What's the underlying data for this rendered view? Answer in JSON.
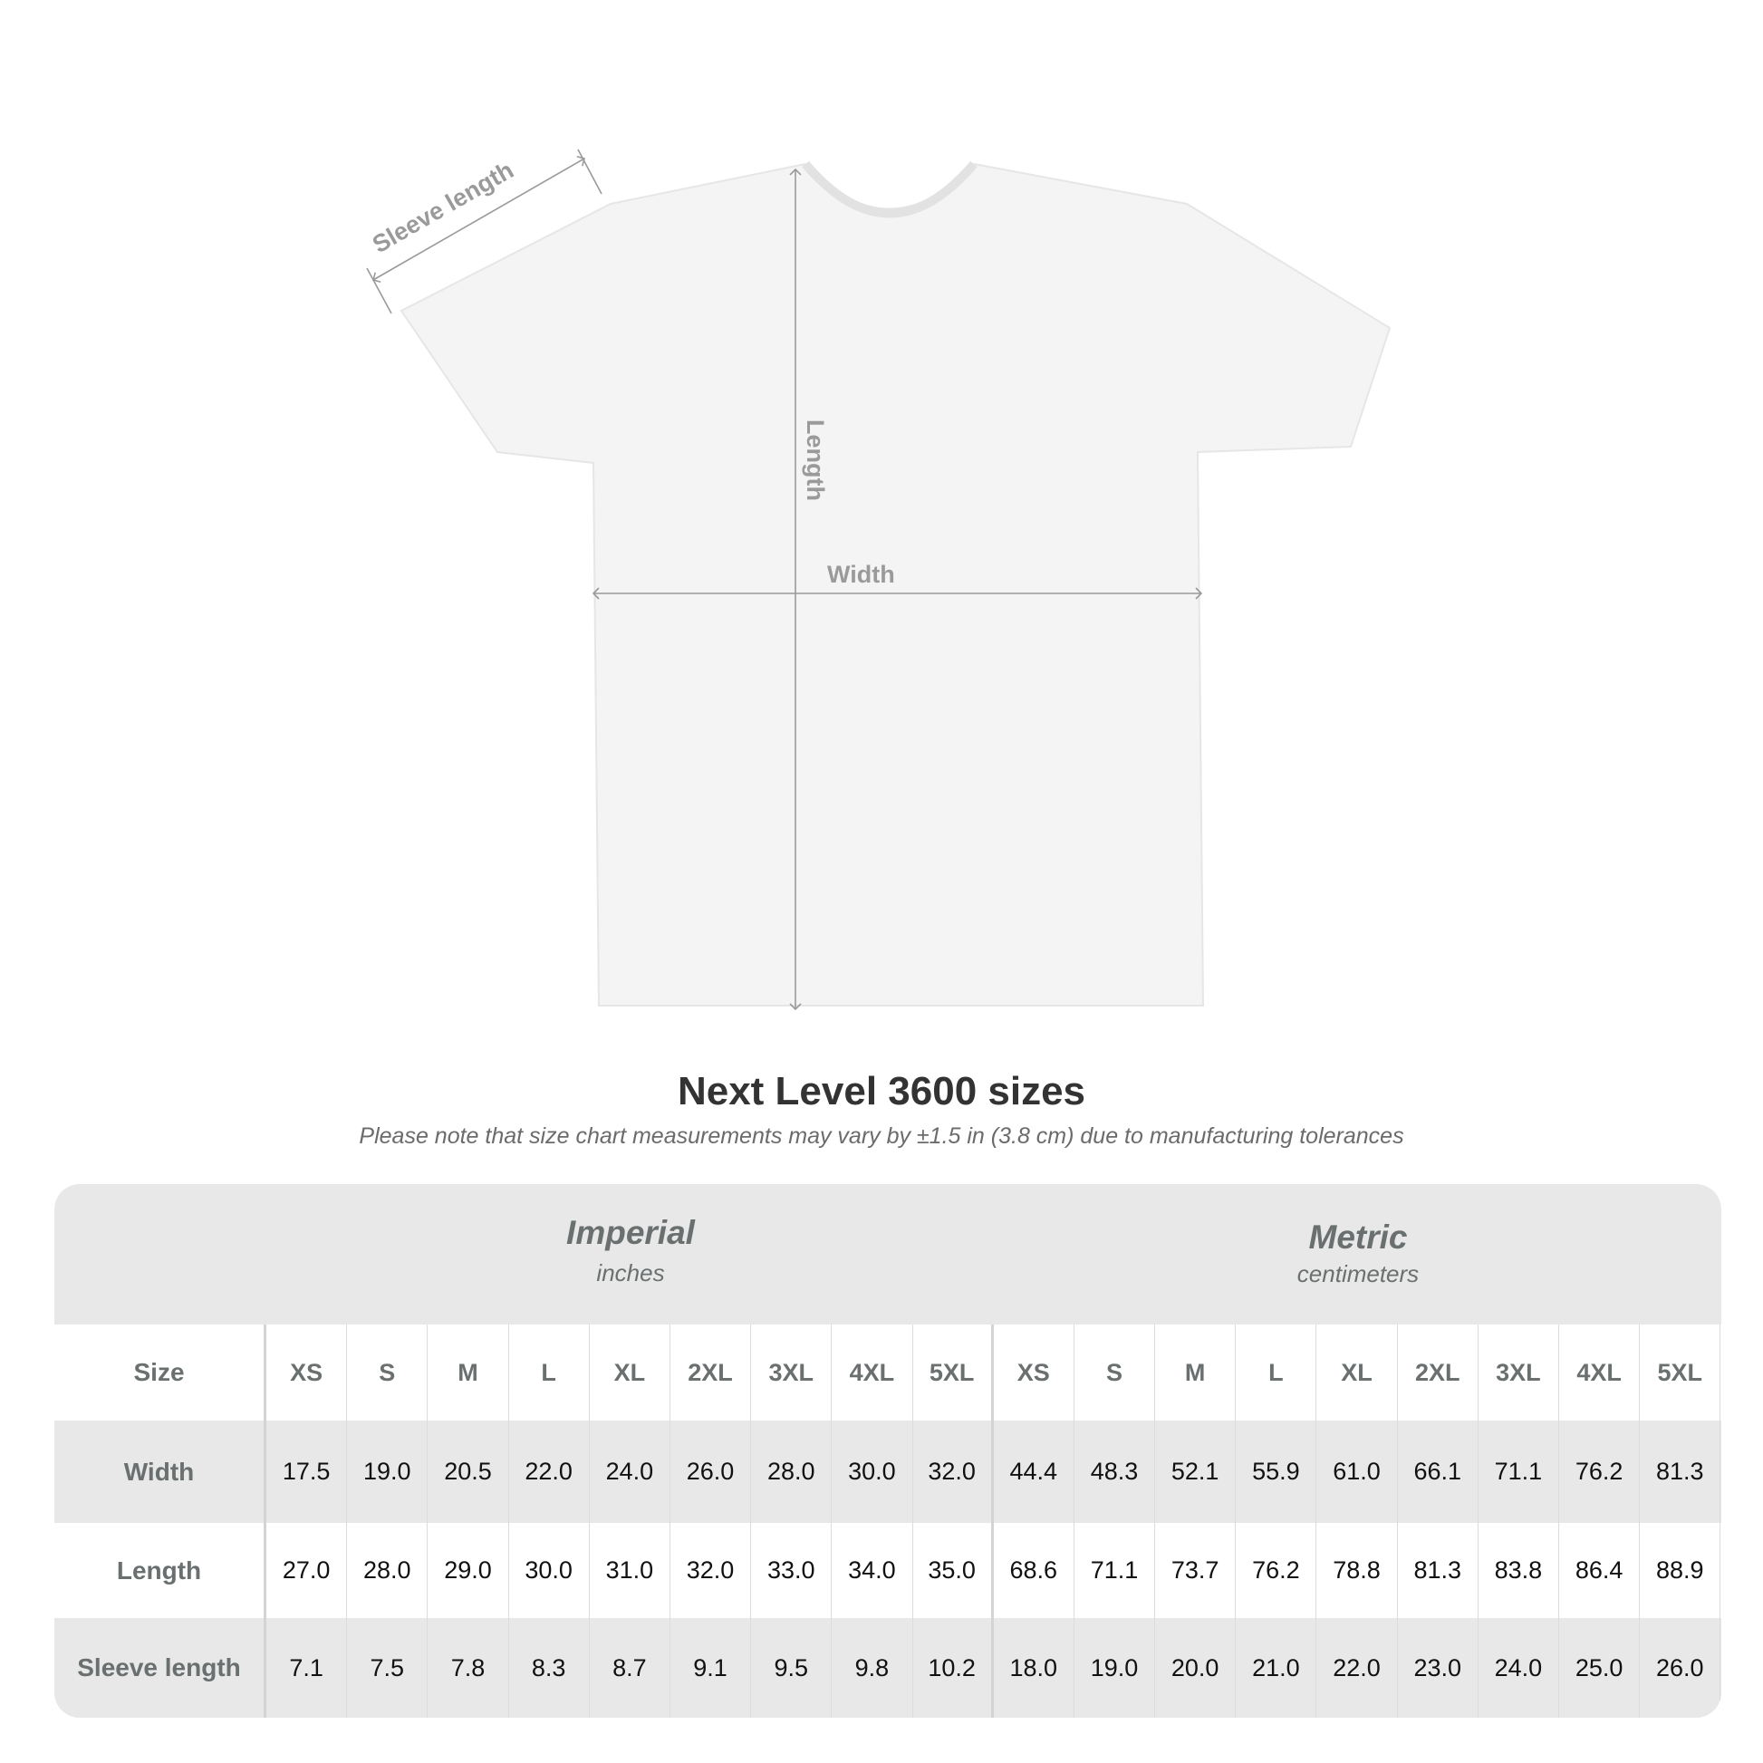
{
  "diagram": {
    "labels": {
      "sleeve": "Sleeve length",
      "length": "Length",
      "width": "Width"
    },
    "garment_color": "#f4f4f4",
    "line_color": "#9a9a9a"
  },
  "title": "Next Level 3600 sizes",
  "subtitle": "Please note that size chart measurements may vary by ±1.5 in (3.8 cm) due to manufacturing tolerances",
  "table": {
    "imperial": {
      "title": "Imperial",
      "unit": "inches"
    },
    "metric": {
      "title": "Metric",
      "unit": "centimeters"
    },
    "size_label": "Size",
    "sizes": [
      "XS",
      "S",
      "M",
      "L",
      "XL",
      "2XL",
      "3XL",
      "4XL",
      "5XL"
    ],
    "rows": [
      {
        "label": "Width",
        "imperial": [
          "17.5",
          "19.0",
          "20.5",
          "22.0",
          "24.0",
          "26.0",
          "28.0",
          "30.0",
          "32.0"
        ],
        "metric": [
          "44.4",
          "48.3",
          "52.1",
          "55.9",
          "61.0",
          "66.1",
          "71.1",
          "76.2",
          "81.3"
        ]
      },
      {
        "label": "Length",
        "imperial": [
          "27.0",
          "28.0",
          "29.0",
          "30.0",
          "31.0",
          "32.0",
          "33.0",
          "34.0",
          "35.0"
        ],
        "metric": [
          "68.6",
          "71.1",
          "73.7",
          "76.2",
          "78.8",
          "81.3",
          "83.8",
          "86.4",
          "88.9"
        ]
      },
      {
        "label": "Sleeve length",
        "imperial": [
          "7.1",
          "7.5",
          "7.8",
          "8.3",
          "8.7",
          "9.1",
          "9.5",
          "9.8",
          "10.2"
        ],
        "metric": [
          "18.0",
          "19.0",
          "20.0",
          "21.0",
          "22.0",
          "23.0",
          "24.0",
          "25.0",
          "26.0"
        ]
      }
    ]
  }
}
